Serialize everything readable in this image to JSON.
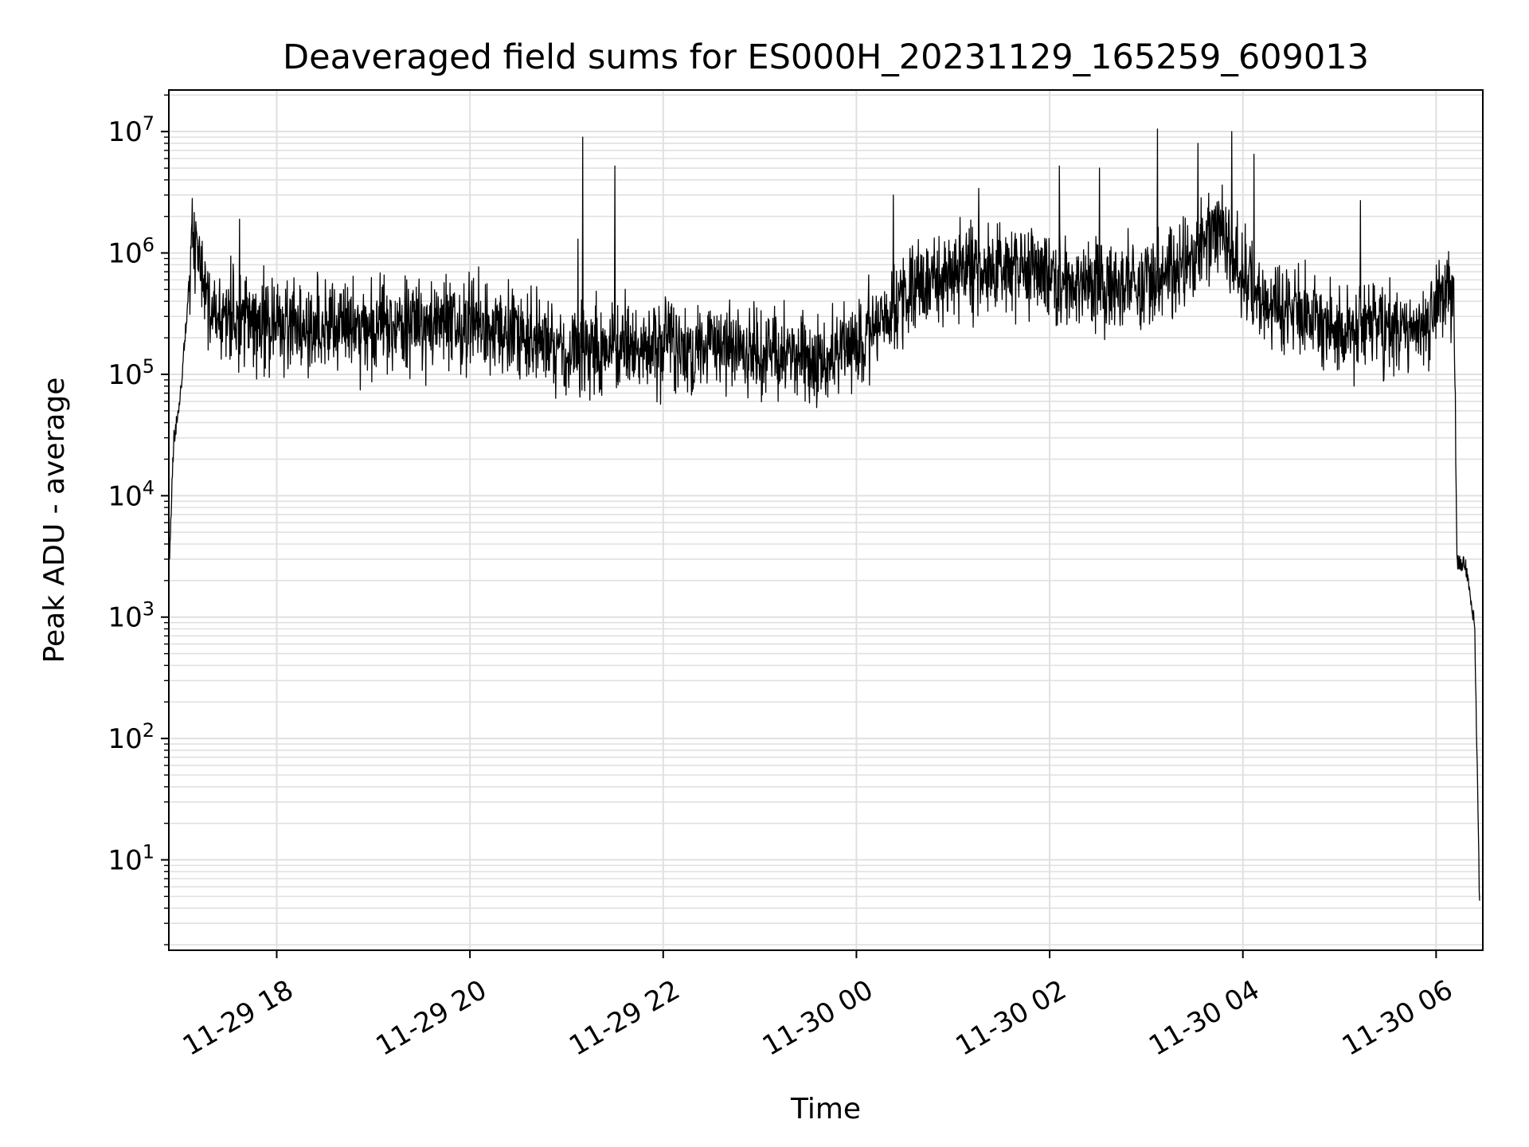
{
  "chart_data": {
    "type": "line",
    "title": "Deaveraged field sums for ES000H_20231129_165259_609013",
    "xlabel": "Time",
    "ylabel": "Peak ADU - average",
    "y_scale": "log",
    "ylim": [
      1.8,
      22000000
    ],
    "xlim": [
      "2023-11-29T16:53",
      "2023-11-30T06:29"
    ],
    "grid": true,
    "grid_minor": true,
    "line_color": "#000000",
    "grid_color": "#e0e0e0",
    "x_ticks": [
      {
        "value": "2023-11-29T18:00",
        "label": "11-29 18"
      },
      {
        "value": "2023-11-29T20:00",
        "label": "11-29 20"
      },
      {
        "value": "2023-11-29T22:00",
        "label": "11-29 22"
      },
      {
        "value": "2023-11-30T00:00",
        "label": "11-30 00"
      },
      {
        "value": "2023-11-30T02:00",
        "label": "11-30 02"
      },
      {
        "value": "2023-11-30T04:00",
        "label": "11-30 04"
      },
      {
        "value": "2023-11-30T06:00",
        "label": "11-30 06"
      }
    ],
    "y_ticks": [
      {
        "value": 10,
        "base": "10",
        "exp": "1"
      },
      {
        "value": 100,
        "base": "10",
        "exp": "2"
      },
      {
        "value": 1000,
        "base": "10",
        "exp": "3"
      },
      {
        "value": 10000,
        "base": "10",
        "exp": "4"
      },
      {
        "value": 100000,
        "base": "10",
        "exp": "5"
      },
      {
        "value": 1000000,
        "base": "10",
        "exp": "6"
      },
      {
        "value": 10000000,
        "base": "10",
        "exp": "7"
      }
    ],
    "series": [
      {
        "envelope": [
          [
            "2023-11-29T16:53",
            2200
          ],
          [
            "2023-11-29T16:56",
            28000
          ],
          [
            "2023-11-29T17:00",
            60000
          ],
          [
            "2023-11-29T17:04",
            300000
          ],
          [
            "2023-11-29T17:08",
            1500000
          ],
          [
            "2023-11-29T17:12",
            900000
          ],
          [
            "2023-11-29T17:20",
            280000
          ],
          [
            "2023-11-29T18:30",
            240000
          ],
          [
            "2023-11-29T20:00",
            260000
          ],
          [
            "2023-11-29T21:00",
            160000
          ],
          [
            "2023-11-29T22:00",
            180000
          ],
          [
            "2023-11-29T23:00",
            150000
          ],
          [
            "2023-11-29T23:40",
            140000
          ],
          [
            "2023-11-30T00:00",
            170000
          ],
          [
            "2023-11-30T00:40",
            600000
          ],
          [
            "2023-11-30T01:30",
            800000
          ],
          [
            "2023-11-30T02:30",
            500000
          ],
          [
            "2023-11-30T03:15",
            600000
          ],
          [
            "2023-11-30T03:45",
            1600000
          ],
          [
            "2023-11-30T04:05",
            450000
          ],
          [
            "2023-11-30T05:00",
            250000
          ],
          [
            "2023-11-30T05:55",
            250000
          ],
          [
            "2023-11-30T06:05",
            500000
          ],
          [
            "2023-11-30T06:11",
            400000
          ],
          [
            "2023-11-30T06:13",
            3000
          ],
          [
            "2023-11-30T06:19",
            2500
          ],
          [
            "2023-11-30T06:24",
            800
          ],
          [
            "2023-11-30T06:27",
            4
          ]
        ],
        "spikes": [
          [
            "2023-11-29T21:10",
            9000000
          ],
          [
            "2023-11-29T21:30",
            5200000
          ],
          [
            "2023-11-29T21:07",
            1300000
          ],
          [
            "2023-11-29T17:37",
            1900000
          ],
          [
            "2023-11-30T00:23",
            3000000
          ],
          [
            "2023-11-30T01:16",
            3400000
          ],
          [
            "2023-11-30T02:06",
            5200000
          ],
          [
            "2023-11-30T02:31",
            5000000
          ],
          [
            "2023-11-30T03:07",
            10500000
          ],
          [
            "2023-11-30T03:32",
            8000000
          ],
          [
            "2023-11-30T03:53",
            10000000
          ],
          [
            "2023-11-30T04:07",
            6500000
          ],
          [
            "2023-11-30T05:13",
            2700000
          ]
        ]
      }
    ]
  }
}
